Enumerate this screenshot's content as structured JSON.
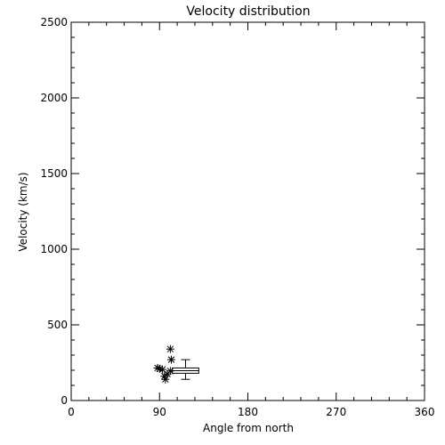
{
  "chart_data": {
    "type": "scatter",
    "title": "Velocity distribution",
    "xlabel": "Angle from north",
    "ylabel": "Velocity (km/s)",
    "xlim": [
      0,
      360
    ],
    "ylim": [
      0,
      2500
    ],
    "xticks": [
      0,
      90,
      180,
      270,
      360
    ],
    "yticks": [
      0,
      500,
      1000,
      1500,
      2000,
      2500
    ],
    "xtick_labels": [
      "0",
      "90",
      "180",
      "270",
      "360"
    ],
    "ytick_labels": [
      "0",
      "500",
      "1000",
      "1500",
      "2000",
      "2500"
    ],
    "grid": false,
    "points": [
      {
        "x": 88,
        "y": 215
      },
      {
        "x": 90,
        "y": 210
      },
      {
        "x": 93,
        "y": 205
      },
      {
        "x": 95,
        "y": 160
      },
      {
        "x": 96,
        "y": 140
      },
      {
        "x": 98,
        "y": 175
      },
      {
        "x": 101,
        "y": 195
      },
      {
        "x": 102,
        "y": 270
      },
      {
        "x": 101,
        "y": 340
      }
    ],
    "boxplot": {
      "x_min": 103,
      "x_max": 130,
      "whisker_low": 140,
      "q1": 180,
      "median": 197,
      "q3": 215,
      "whisker_high": 270
    },
    "marker": "asterisk",
    "color": "#000000"
  }
}
